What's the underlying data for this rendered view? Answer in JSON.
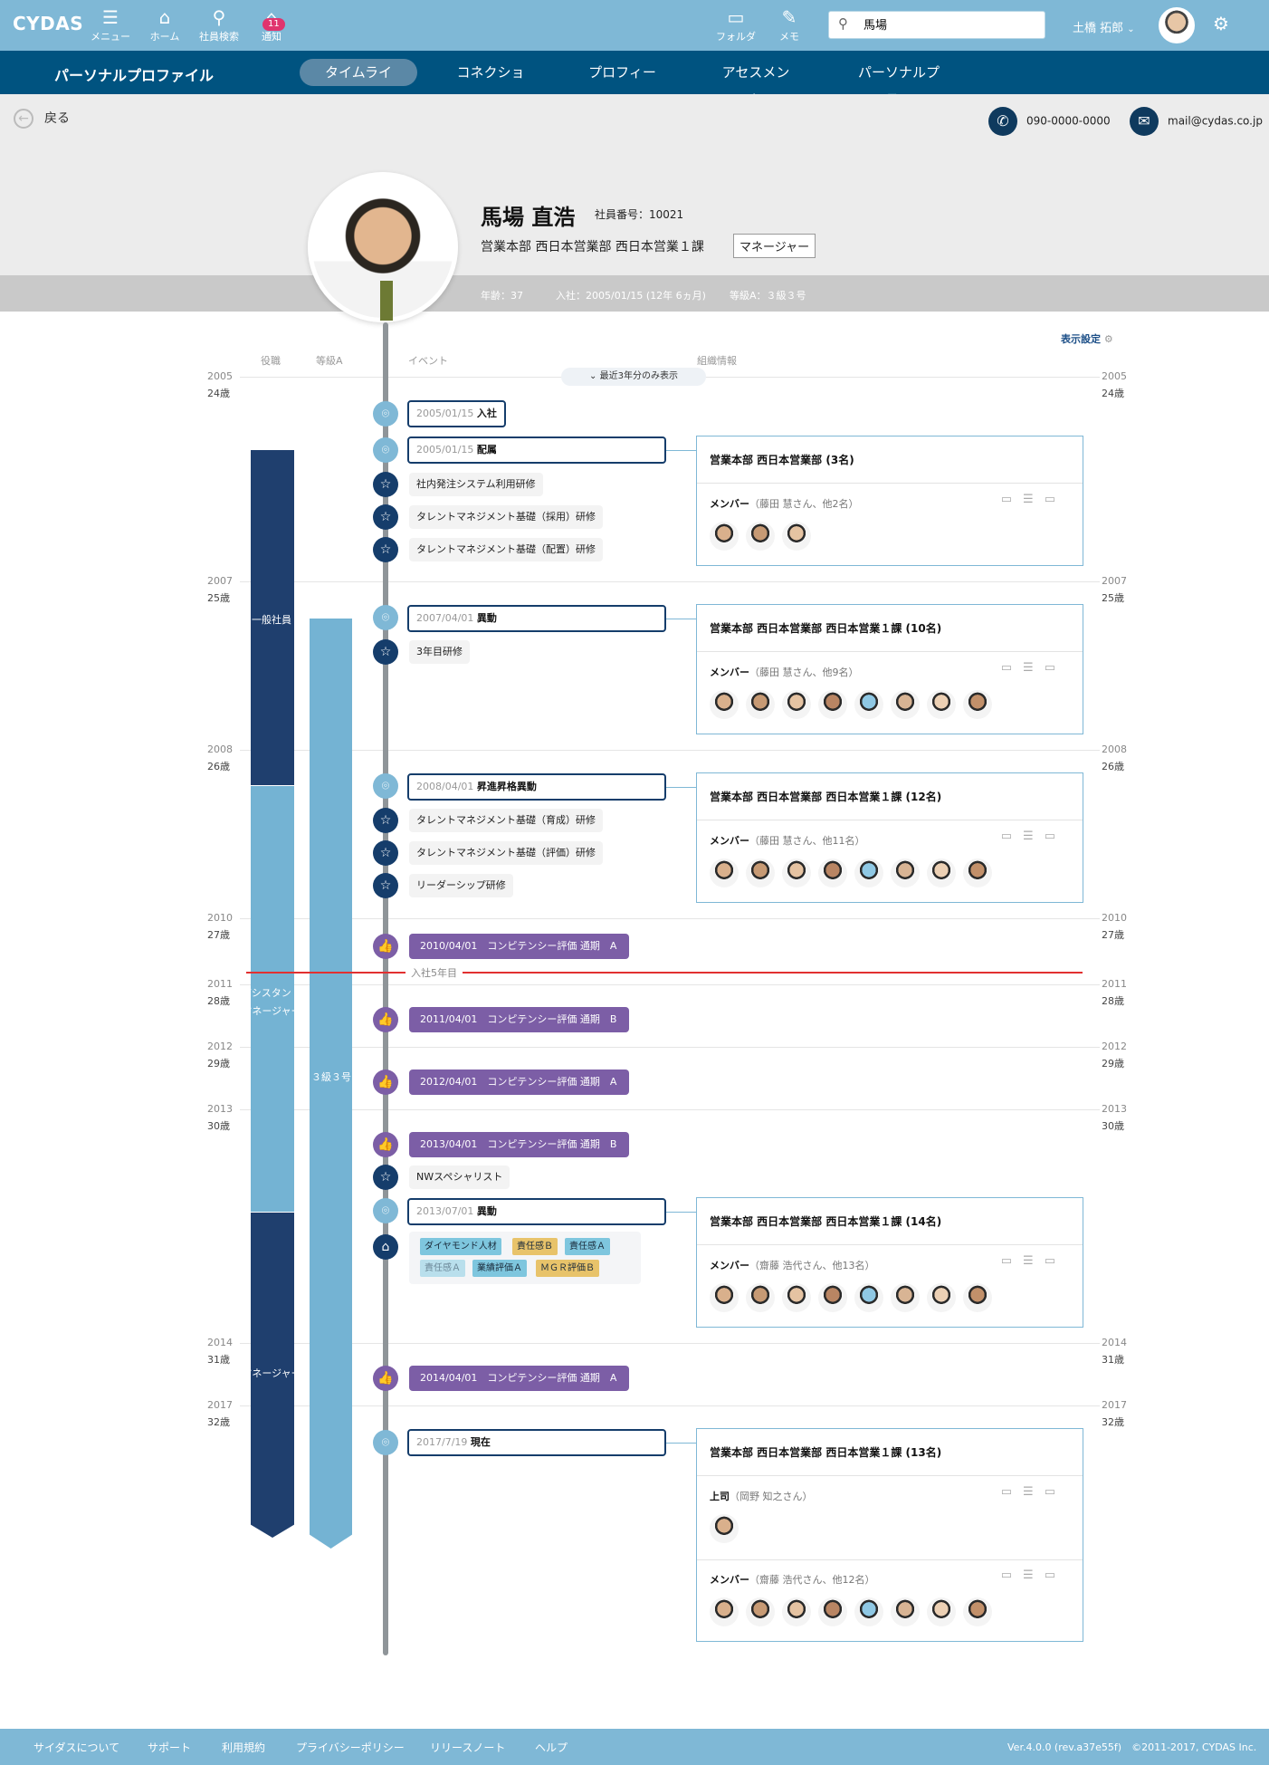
{
  "topbar": {
    "logo": "CYDAS",
    "nav": [
      {
        "label": "メニュー",
        "icon": "menu-icon"
      },
      {
        "label": "ホーム",
        "icon": "home-icon"
      },
      {
        "label": "社員検索",
        "icon": "search-icon"
      },
      {
        "label": "通知",
        "icon": "bell-icon",
        "badge": "11"
      }
    ],
    "right_nav": [
      {
        "label": "フォルダ",
        "icon": "folder-icon"
      },
      {
        "label": "メモ",
        "icon": "memo-icon"
      }
    ],
    "search_value": "馬場",
    "user_name": "土橋 拓郎"
  },
  "subnav": {
    "title": "パーソナルプロファイル",
    "tabs": [
      "タイムライン",
      "コネクション",
      "プロフィール",
      "アセスメント",
      "パーソナルプラン"
    ],
    "active_tab": "タイムライン"
  },
  "header": {
    "back": "戻る",
    "phone": "090-0000-0000",
    "email": "mail@cydas.co.jp",
    "name": "馬場 直浩",
    "employee_no": "社員番号：10021",
    "department": "営業本部 西日本営業部 西日本営業１課",
    "role": "マネージャー",
    "age": "年齢：37",
    "joined": "入社：2005/01/15 (12年 6ヵ月)",
    "grade": "等級A：３級３号"
  },
  "timeline": {
    "display_settings": "表示設定",
    "recent_toggle": "最近3年分のみ表示",
    "col_heads": [
      "役職",
      "等級A",
      "イベント",
      "組織情報"
    ],
    "anniversary": "入社5年目",
    "roles": [
      "一般社員",
      "アシスタントマネージャー",
      "マネージャー"
    ],
    "grade_label": "３級３号",
    "years": [
      {
        "year": "2005",
        "age": "24歳"
      },
      {
        "year": "2007",
        "age": "25歳"
      },
      {
        "year": "2008",
        "age": "26歳"
      },
      {
        "year": "2010",
        "age": "27歳"
      },
      {
        "year": "2011",
        "age": "28歳"
      },
      {
        "year": "2012",
        "age": "29歳"
      },
      {
        "year": "2013",
        "age": "30歳"
      },
      {
        "year": "2014",
        "age": "31歳"
      },
      {
        "year": "2017",
        "age": "32歳"
      }
    ],
    "events": [
      {
        "date": "2005/01/15",
        "title": "入社"
      },
      {
        "date": "2005/01/15",
        "title": "配属"
      },
      {
        "text": "社内発注システム利用研修"
      },
      {
        "text": "タレントマネジメント基礎（採用）研修"
      },
      {
        "text": "タレントマネジメント基礎（配置）研修"
      },
      {
        "date": "2007/04/01",
        "title": "異動"
      },
      {
        "text": "3年目研修"
      },
      {
        "date": "2008/04/01",
        "title": "昇進昇格異動"
      },
      {
        "text": "タレントマネジメント基礎（育成）研修"
      },
      {
        "text": "タレントマネジメント基礎（評価）研修"
      },
      {
        "text": "リーダーシップ研修"
      },
      {
        "comp": "2010/04/01　コンピテンシー評価 通期　A"
      },
      {
        "comp": "2011/04/01　コンピテンシー評価 通期　B"
      },
      {
        "comp": "2012/04/01　コンピテンシー評価 通期　A"
      },
      {
        "comp": "2013/04/01　コンピテンシー評価 通期　B"
      },
      {
        "text": "NWスペシャリスト"
      },
      {
        "date": "2013/07/01",
        "title": "異動"
      },
      {
        "comp": "2014/04/01　コンピテンシー評価 通期　A"
      },
      {
        "date": "2017/7/19",
        "title": "現在"
      }
    ],
    "tags": [
      {
        "label": "ダイヤモンド人材",
        "color": "#7ec6de"
      },
      {
        "label": "責任感Ｂ",
        "color": "#e8c36a"
      },
      {
        "label": "責任感Ａ",
        "color": "#7ec6de"
      },
      {
        "label": "責任感Ａ",
        "color": "#b9dfec"
      },
      {
        "label": "業績評価Ａ",
        "color": "#7ec6de"
      },
      {
        "label": "ＭＧＲ評価Ｂ",
        "color": "#e8c36a"
      }
    ],
    "orgs": [
      {
        "title": "営業本部 西日本営業部 (3名)",
        "members_label": "メンバー",
        "members_note": "（藤田 慧さん、他2名）"
      },
      {
        "title": "営業本部 西日本営業部 西日本営業１課 (10名)",
        "members_label": "メンバー",
        "members_note": "（藤田 慧さん、他9名）"
      },
      {
        "title": "営業本部 西日本営業部 西日本営業１課 (12名)",
        "members_label": "メンバー",
        "members_note": "（藤田 慧さん、他11名）"
      },
      {
        "title": "営業本部 西日本営業部 西日本営業１課 (14名)",
        "members_label": "メンバー",
        "members_note": "（齋藤 浩代さん、他13名）"
      },
      {
        "title": "営業本部 西日本営業部 西日本営業１課 (13名)",
        "boss_label": "上司",
        "boss_note": "（岡野 知之さん）",
        "members_label": "メンバー",
        "members_note": "（齋藤 浩代さん、他12名）"
      }
    ]
  },
  "footer": {
    "links": [
      "サイダスについて",
      "サポート",
      "利用規約",
      "プライバシーポリシー",
      "リリースノート",
      "ヘルプ"
    ],
    "version": "Ver.4.0.0 (rev.a37e55f)　©2011-2017, CYDAS Inc."
  }
}
